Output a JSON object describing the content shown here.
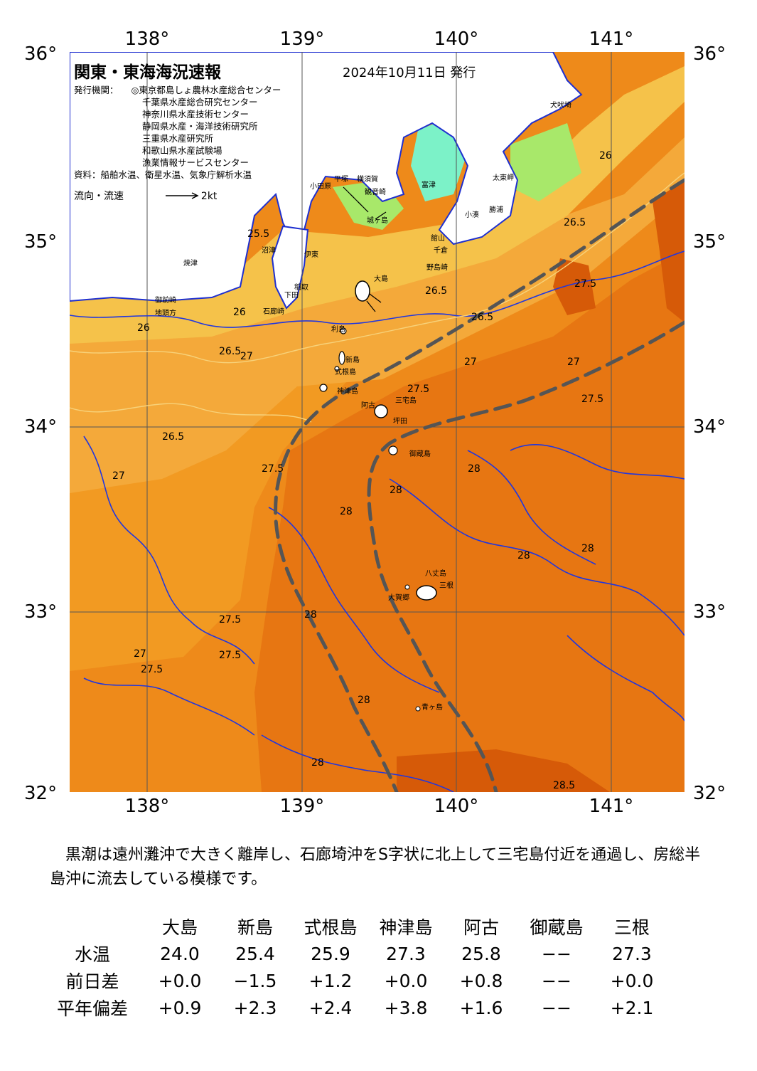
{
  "map": {
    "title": "関東・東海海況速報",
    "issue_date": "2024年10月11日 発行",
    "agencies_label": "発行機関：",
    "agencies": [
      "◎東京都島しょ農林水産総合センター",
      "千葉県水産総合研究センター",
      "神奈川県水産技術センター",
      "静岡県水産・海洋技術研究所",
      "三重県水産研究所",
      "和歌山県水産試験場",
      "漁業情報サービスセンター"
    ],
    "sources": "資料：船舶水温、衛星水温、気象庁解析水温",
    "flow_label": "流向・流速",
    "flow_scale": "2kt",
    "lon_labels": [
      "138°",
      "139°",
      "140°",
      "141°"
    ],
    "lat_labels": [
      "36°",
      "35°",
      "34°",
      "33°",
      "32°"
    ],
    "place_names": {
      "odawara": "小田原",
      "hiratsuka": "平塚",
      "yokosuka": "横須賀",
      "kannonzaki": "観音崎",
      "tomitsu": "富津",
      "jogashima": "城ヶ島",
      "taitomisaki": "太東岬",
      "inubosaki": "犬吠埼",
      "kominato": "小湊",
      "katsuura": "勝浦",
      "tateyama": "館山",
      "chikura": "千倉",
      "nojimazaki": "野島崎",
      "oshima": "大島",
      "toshima": "利島",
      "niijima": "新島",
      "shikinejima": "式根島",
      "kozushima": "神津島",
      "miyakejima": "三宅島",
      "ako": "阿古",
      "tsubota": "坪田",
      "mikurajima": "御蔵島",
      "hachijojima": "八丈島",
      "mitsune": "三根",
      "okago": "大賀郷",
      "aogashima": "青ヶ島",
      "yaizu": "焼津",
      "omaezaki": "御前崎",
      "jitogata": "地頭方",
      "numazu": "沼津",
      "ito": "伊東",
      "inatori": "稲取",
      "shimoda": "下田",
      "irozaki": "石廊崎"
    },
    "isotherm_labels": [
      "25.5",
      "26",
      "26.5",
      "27",
      "27.5",
      "28",
      "28.5"
    ]
  },
  "summary": "　黒潮は遠州灘沖で大きく離岸し、石廊埼沖をS字状に北上して三宅島付近を通過し、房総半島沖に流去している模様です。",
  "stations_table": {
    "columns": [
      "大島",
      "新島",
      "式根島",
      "神津島",
      "阿古",
      "御蔵島",
      "三根"
    ],
    "rows": [
      {
        "label": "水温",
        "values": [
          "24.0",
          "25.4",
          "25.9",
          "27.3",
          "25.8",
          "−−",
          "27.3"
        ]
      },
      {
        "label": "前日差",
        "values": [
          "+0.0",
          "−1.5",
          "+1.2",
          "+0.0",
          "+0.8",
          "−−",
          "+0.0"
        ]
      },
      {
        "label": "平年偏差",
        "values": [
          "+0.9",
          "+2.3",
          "+2.4",
          "+3.8",
          "+1.6",
          "−−",
          "+2.1"
        ]
      }
    ]
  },
  "colors": {
    "sst_26": "#f5c24a",
    "sst_26_5": "#f4a93a",
    "sst_27": "#f29a22",
    "sst_27_5": "#ee8a1a",
    "sst_28": "#e77612",
    "sst_28_5": "#d65a08",
    "land": "#ffffff",
    "coast": "#1e2fd0",
    "kuroshio_axis": "#555555",
    "cold_tokyo_bay": "#7cf2c8",
    "cool_chiba": "#a8e86a"
  }
}
